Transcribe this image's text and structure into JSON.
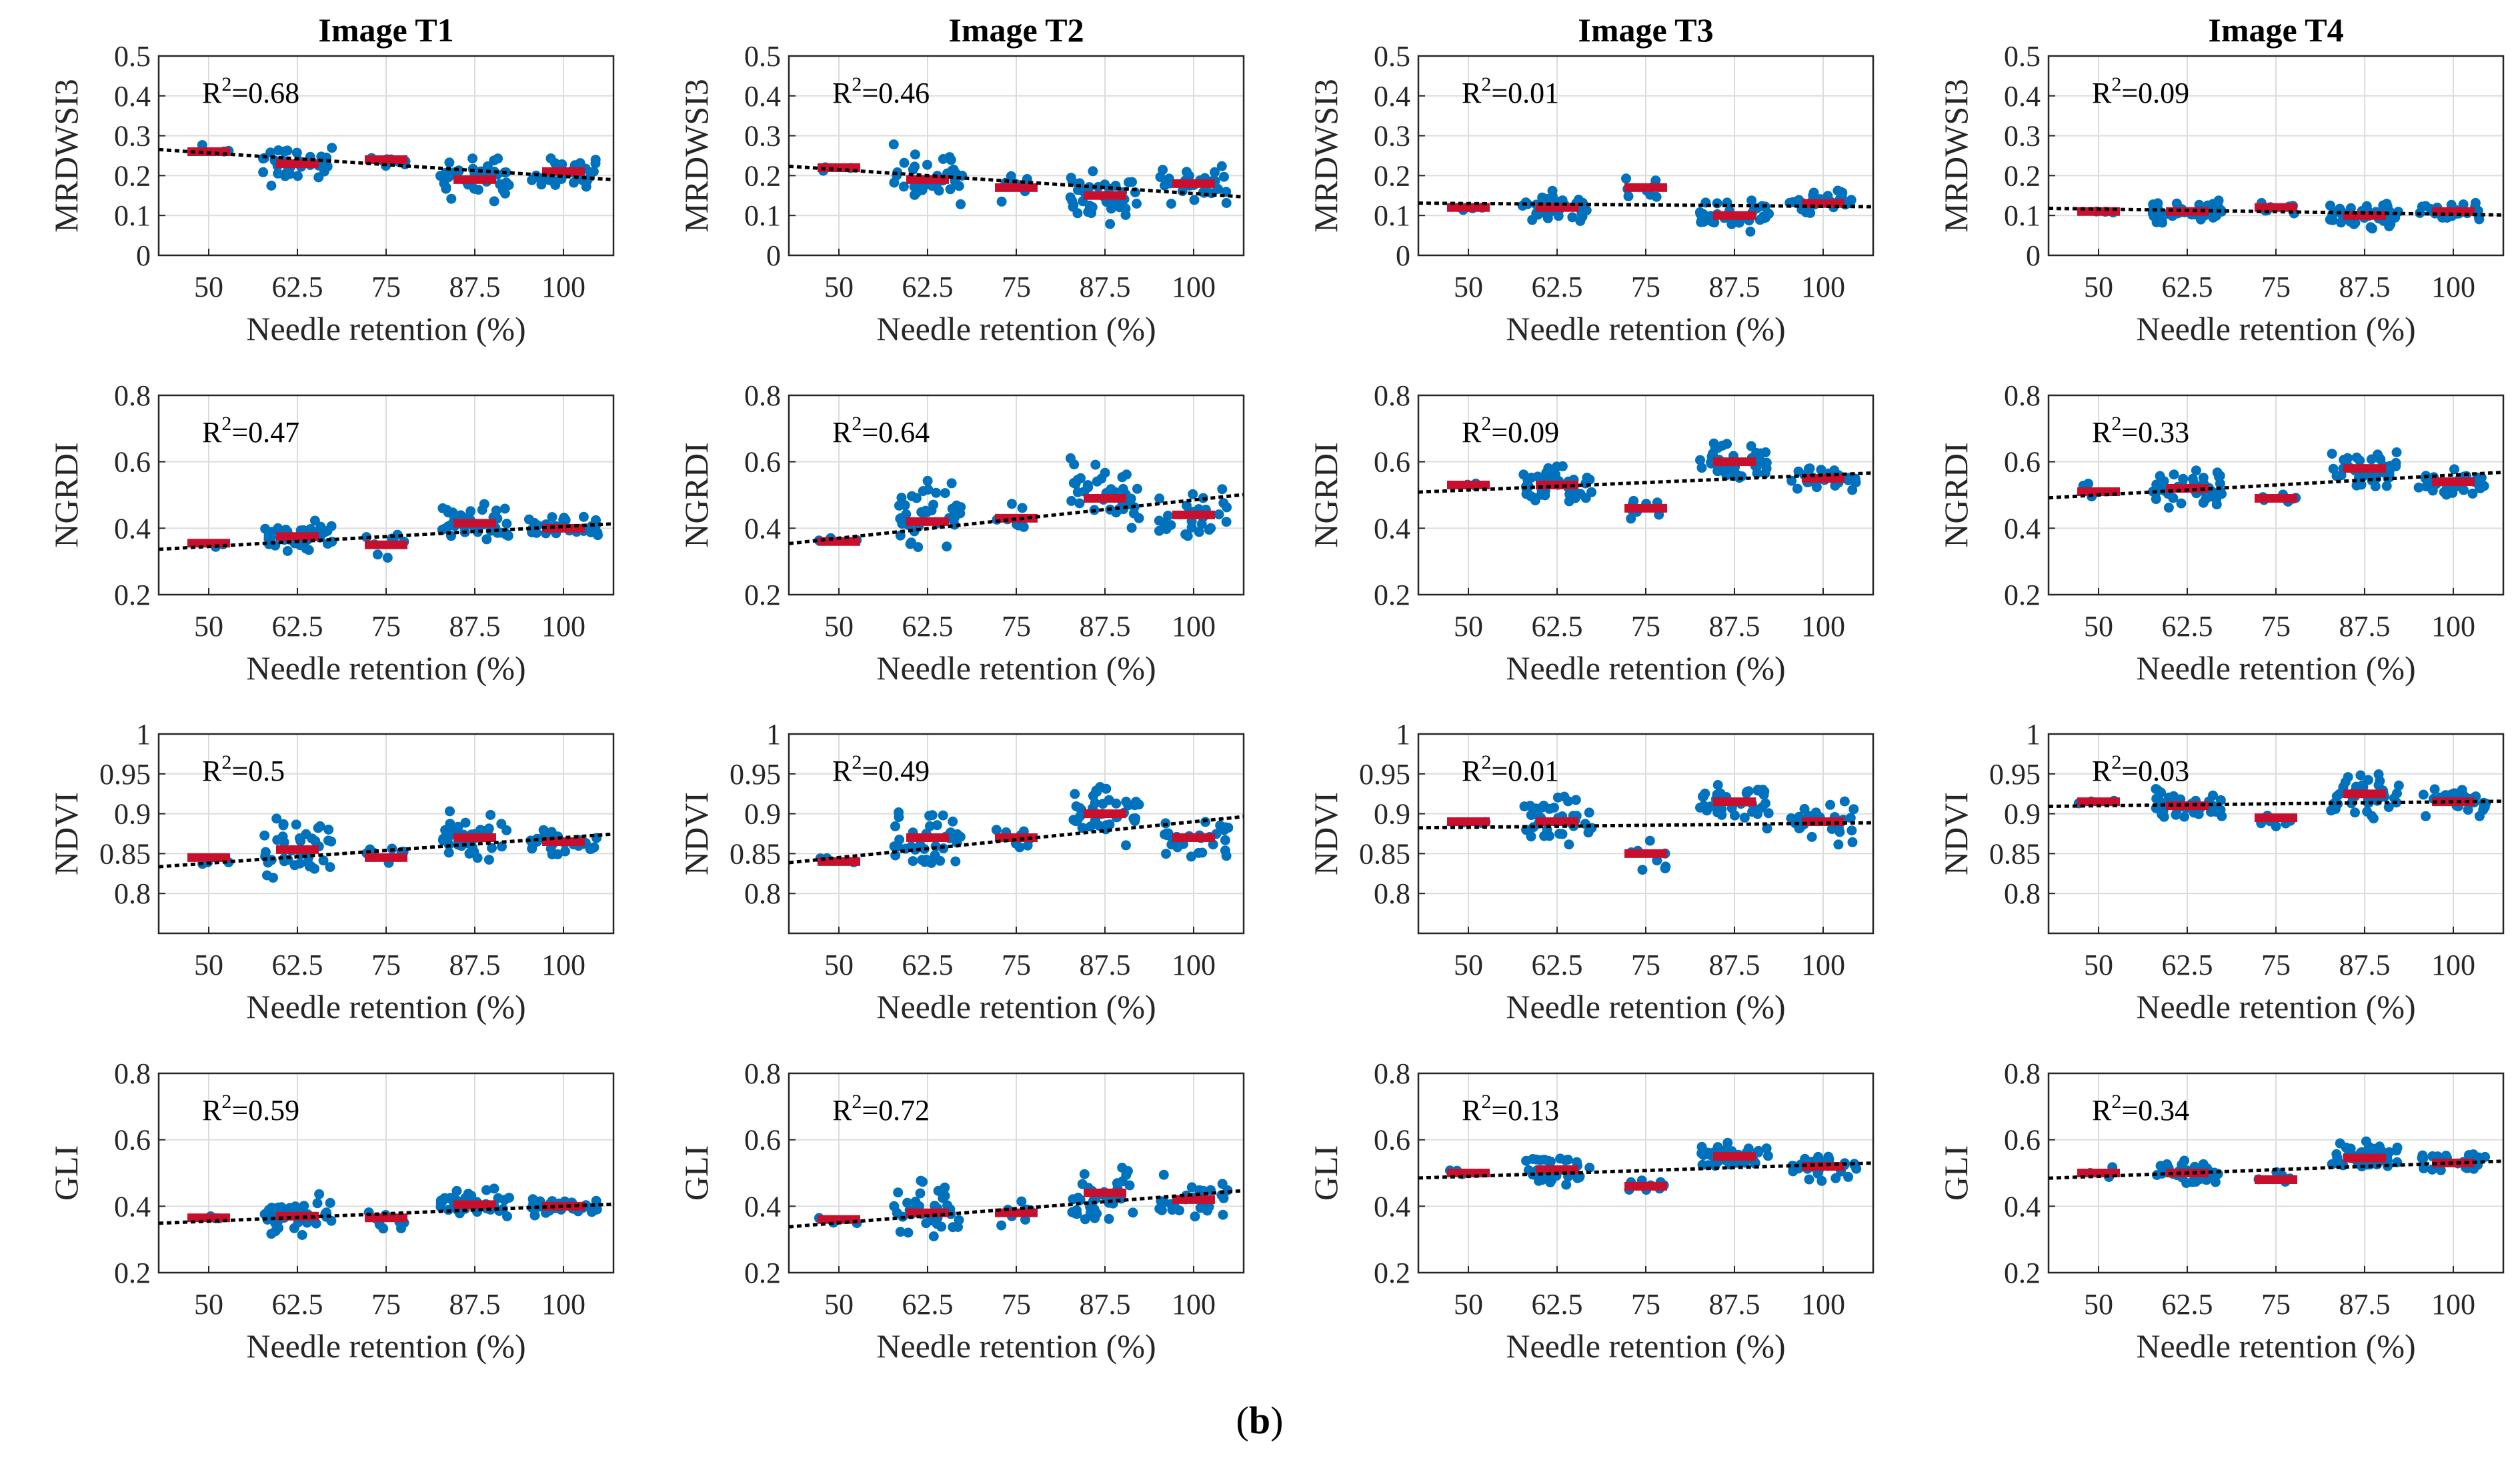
{
  "caption": {
    "open": "(",
    "letter": "b",
    "close": ")"
  },
  "colors": {
    "points": "#0072BD",
    "median": "#C8102E",
    "trend": "#000000",
    "grid": "#dcdcdc",
    "axis": "#262626"
  },
  "chart_data": {
    "type": "scatter",
    "xlabel": "Needle retention (%)",
    "categories": [
      "50",
      "62.5",
      "75",
      "87.5",
      "100"
    ],
    "columns": [
      "Image T1",
      "Image T2",
      "Image T3",
      "Image T4"
    ],
    "rows": [
      {
        "ylabel": "MRDWSI3",
        "ylim": [
          0,
          0.5
        ],
        "yticks": [
          "0",
          "0.1",
          "0.2",
          "0.3",
          "0.4",
          "0.5"
        ]
      },
      {
        "ylabel": "NGRDI",
        "ylim": [
          0.2,
          0.8
        ],
        "yticks": [
          "0.2",
          "0.4",
          "0.6",
          "0.8"
        ]
      },
      {
        "ylabel": "NDVI",
        "ylim": [
          0.75,
          1.0
        ],
        "yticks": [
          "0.8",
          "0.85",
          "0.9",
          "0.95",
          "1"
        ]
      },
      {
        "ylabel": "GLI",
        "ylim": [
          0.2,
          0.8
        ],
        "yticks": [
          "0.2",
          "0.4",
          "0.6",
          "0.8"
        ]
      }
    ],
    "panels": [
      [
        {
          "r2_label": "R",
          "r2_sup": "2",
          "r2_value": "=0.68",
          "medians": [
            0.26,
            0.23,
            0.24,
            0.19,
            0.21
          ],
          "trend": [
            0.257,
            0.198
          ],
          "spread": [
            0.02,
            0.045,
            0.025,
            0.05,
            0.035
          ],
          "counts": [
            3,
            40,
            8,
            40,
            30
          ]
        },
        {
          "r2_label": "R",
          "r2_sup": "2",
          "r2_value": "=0.46",
          "medians": [
            0.22,
            0.19,
            0.17,
            0.15,
            0.18
          ],
          "trend": [
            0.215,
            0.155
          ],
          "spread": [
            0.01,
            0.06,
            0.03,
            0.05,
            0.04
          ],
          "counts": [
            3,
            40,
            8,
            40,
            30
          ]
        },
        {
          "r2_label": "R",
          "r2_sup": "2",
          "r2_value": "=0.01",
          "medians": [
            0.12,
            0.12,
            0.17,
            0.1,
            0.13
          ],
          "trend": [
            0.13,
            0.123
          ],
          "spread": [
            0.01,
            0.03,
            0.025,
            0.03,
            0.03
          ],
          "counts": [
            3,
            40,
            8,
            40,
            30
          ]
        },
        {
          "r2_label": "R",
          "r2_sup": "2",
          "r2_value": "=0.09",
          "medians": [
            0.11,
            0.11,
            0.12,
            0.1,
            0.11
          ],
          "trend": [
            0.116,
            0.103
          ],
          "spread": [
            0.01,
            0.025,
            0.015,
            0.03,
            0.02
          ],
          "counts": [
            3,
            40,
            8,
            40,
            30
          ]
        }
      ],
      [
        {
          "r2_label": "R",
          "r2_sup": "2",
          "r2_value": "=0.47",
          "medians": [
            0.355,
            0.375,
            0.35,
            0.415,
            0.4
          ],
          "trend": [
            0.345,
            0.405
          ],
          "spread": [
            0.01,
            0.045,
            0.03,
            0.05,
            0.04
          ],
          "counts": [
            3,
            40,
            8,
            40,
            30
          ]
        },
        {
          "r2_label": "R",
          "r2_sup": "2",
          "r2_value": "=0.64",
          "medians": [
            0.36,
            0.42,
            0.43,
            0.49,
            0.44
          ],
          "trend": [
            0.37,
            0.485
          ],
          "spread": [
            0.01,
            0.1,
            0.04,
            0.09,
            0.07
          ],
          "counts": [
            3,
            40,
            8,
            40,
            30
          ]
        },
        {
          "r2_label": "R",
          "r2_sup": "2",
          "r2_value": "=0.09",
          "medians": [
            0.53,
            0.53,
            0.46,
            0.6,
            0.55
          ],
          "trend": [
            0.515,
            0.56
          ],
          "spread": [
            0.02,
            0.055,
            0.03,
            0.05,
            0.035
          ],
          "counts": [
            3,
            40,
            8,
            40,
            30
          ]
        },
        {
          "r2_label": "R",
          "r2_sup": "2",
          "r2_value": "=0.33",
          "medians": [
            0.51,
            0.52,
            0.49,
            0.58,
            0.54
          ],
          "trend": [
            0.5,
            0.56
          ],
          "spread": [
            0.025,
            0.05,
            0.02,
            0.055,
            0.035
          ],
          "counts": [
            3,
            40,
            8,
            40,
            30
          ]
        }
      ],
      [
        {
          "r2_label": "R",
          "r2_sup": "2",
          "r2_value": "=0.5",
          "medians": [
            0.845,
            0.855,
            0.845,
            0.87,
            0.865
          ],
          "trend": [
            0.838,
            0.87
          ],
          "spread": [
            0.006,
            0.03,
            0.02,
            0.025,
            0.015
          ],
          "counts": [
            3,
            40,
            8,
            40,
            30
          ]
        },
        {
          "r2_label": "R",
          "r2_sup": "2",
          "r2_value": "=0.49",
          "medians": [
            0.84,
            0.87,
            0.87,
            0.9,
            0.87
          ],
          "trend": [
            0.845,
            0.89
          ],
          "spread": [
            0.005,
            0.04,
            0.02,
            0.035,
            0.025
          ],
          "counts": [
            3,
            40,
            8,
            40,
            30
          ]
        },
        {
          "r2_label": "R",
          "r2_sup": "2",
          "r2_value": "=0.01",
          "medians": [
            0.89,
            0.89,
            0.85,
            0.915,
            0.89
          ],
          "trend": [
            0.883,
            0.888
          ],
          "spread": [
            0.005,
            0.03,
            0.025,
            0.025,
            0.02
          ],
          "counts": [
            3,
            40,
            8,
            40,
            30
          ]
        },
        {
          "r2_label": "R",
          "r2_sup": "2",
          "r2_value": "=0.03",
          "medians": [
            0.915,
            0.91,
            0.895,
            0.925,
            0.915
          ],
          "trend": [
            0.91,
            0.915
          ],
          "spread": [
            0.004,
            0.02,
            0.01,
            0.025,
            0.015
          ],
          "counts": [
            3,
            40,
            8,
            40,
            30
          ]
        }
      ],
      [
        {
          "r2_label": "R",
          "r2_sup": "2",
          "r2_value": "=0.59",
          "medians": [
            0.365,
            0.37,
            0.365,
            0.405,
            0.4
          ],
          "trend": [
            0.355,
            0.4
          ],
          "spread": [
            0.01,
            0.045,
            0.03,
            0.04,
            0.03
          ],
          "counts": [
            3,
            40,
            8,
            40,
            30
          ]
        },
        {
          "r2_label": "R",
          "r2_sup": "2",
          "r2_value": "=0.72",
          "medians": [
            0.36,
            0.38,
            0.38,
            0.44,
            0.42
          ],
          "trend": [
            0.35,
            0.435
          ],
          "spread": [
            0.015,
            0.08,
            0.04,
            0.075,
            0.055
          ],
          "counts": [
            3,
            40,
            8,
            40,
            30
          ]
        },
        {
          "r2_label": "R",
          "r2_sup": "2",
          "r2_value": "=0.13",
          "medians": [
            0.5,
            0.51,
            0.46,
            0.55,
            0.52
          ],
          "trend": [
            0.49,
            0.525
          ],
          "spread": [
            0.015,
            0.04,
            0.025,
            0.035,
            0.03
          ],
          "counts": [
            3,
            40,
            8,
            40,
            30
          ]
        },
        {
          "r2_label": "R",
          "r2_sup": "2",
          "r2_value": "=0.34",
          "medians": [
            0.5,
            0.5,
            0.48,
            0.545,
            0.53
          ],
          "trend": [
            0.49,
            0.53
          ],
          "spread": [
            0.02,
            0.045,
            0.015,
            0.045,
            0.025
          ],
          "counts": [
            3,
            40,
            8,
            40,
            30
          ]
        }
      ]
    ]
  }
}
